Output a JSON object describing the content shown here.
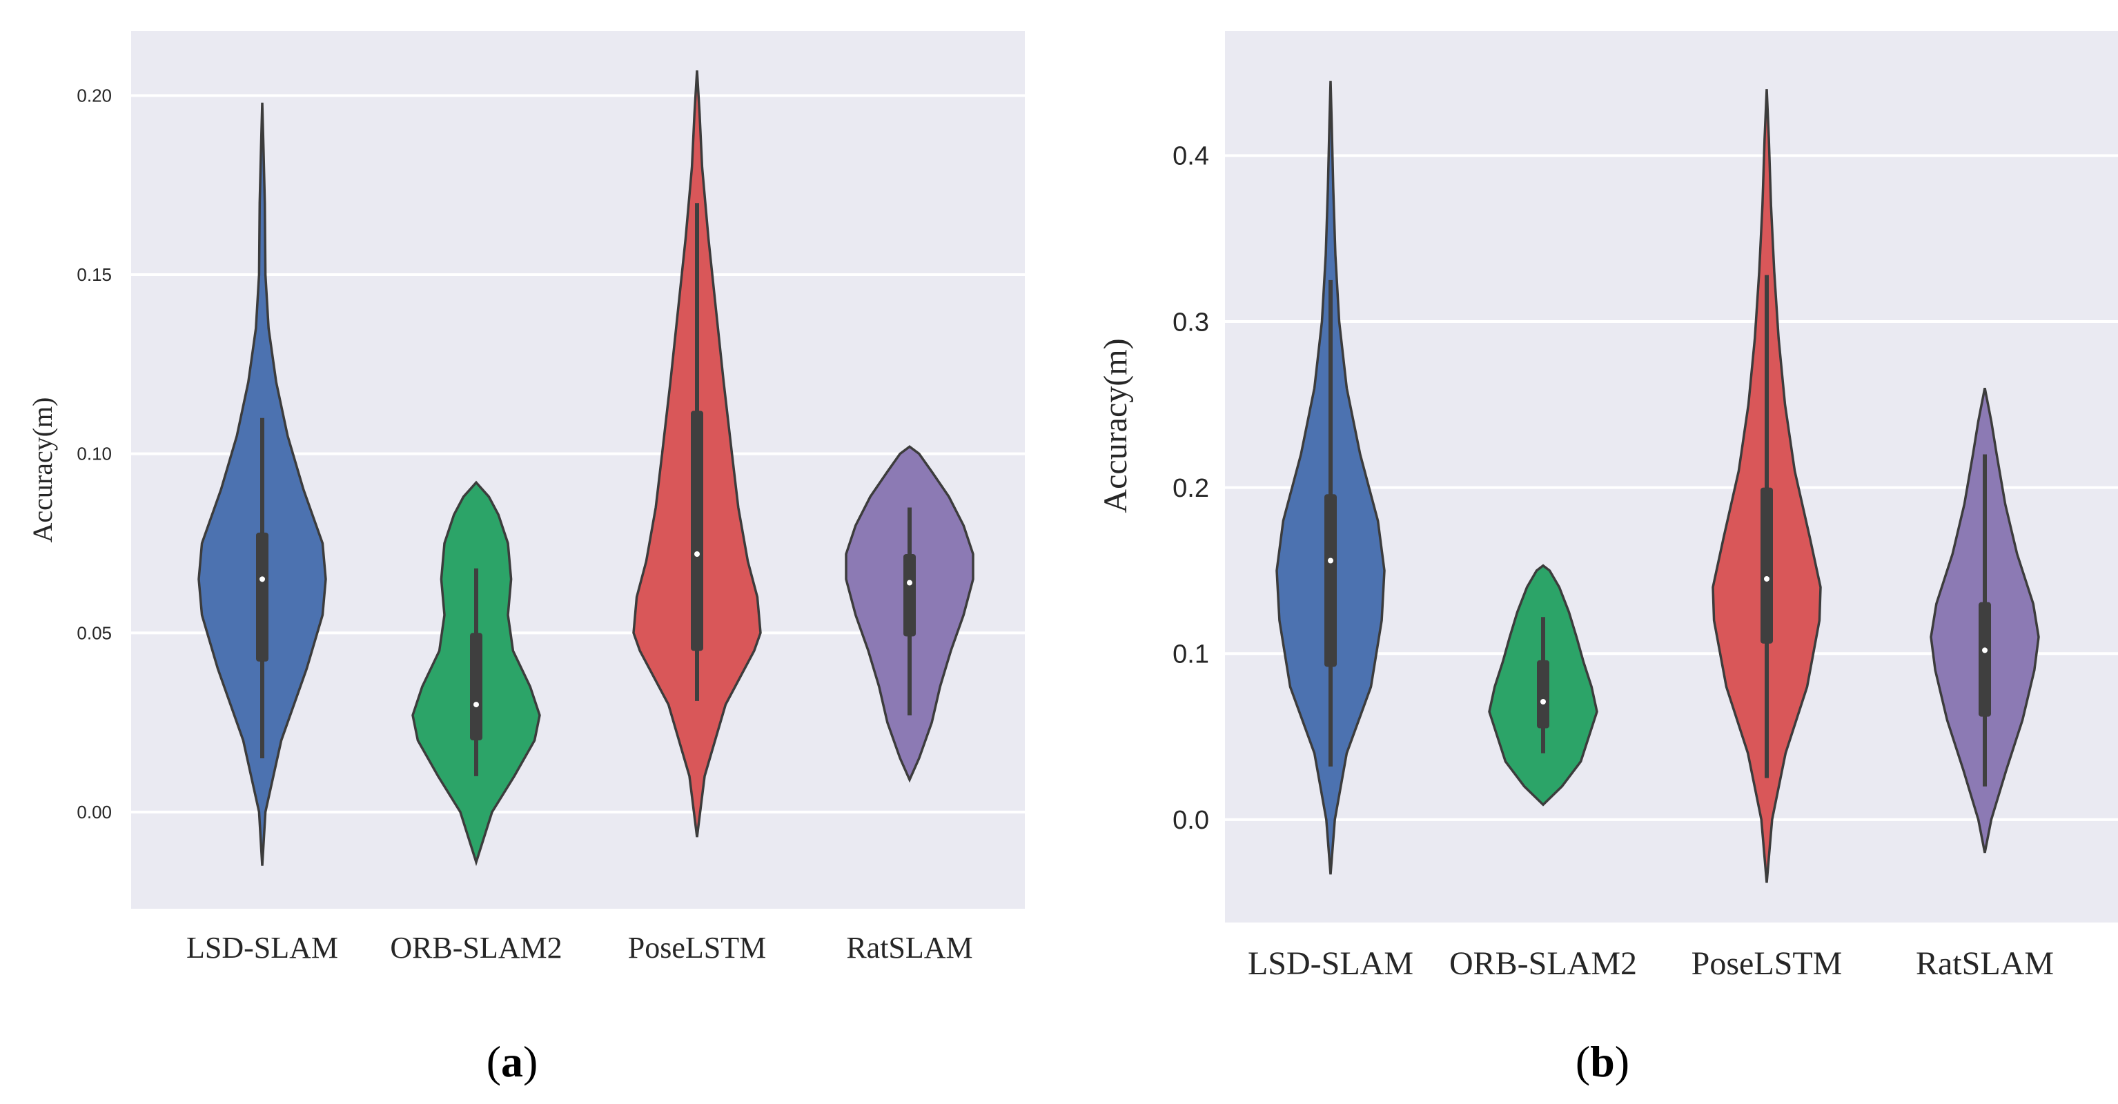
{
  "chart_data": [
    {
      "type": "violin",
      "panel_label": "a",
      "title": "",
      "xlabel": "",
      "ylabel": "Accuracy(m)",
      "ylim": [
        -0.027,
        0.218
      ],
      "yticks": [
        0.0,
        0.05,
        0.1,
        0.15,
        0.2
      ],
      "ytick_labels": [
        "0.00",
        "0.05",
        "0.10",
        "0.15",
        "0.20"
      ],
      "categories": [
        "LSD-SLAM",
        "ORB-SLAM2",
        "PoseLSTM",
        "RatSLAM"
      ],
      "colors": [
        "#4c72b0",
        "#2ca468",
        "#d95759",
        "#8c7ab4"
      ],
      "series": [
        {
          "name": "LSD-SLAM",
          "min": -0.015,
          "max": 0.198,
          "whisker_low": 0.015,
          "whisker_high": 0.11,
          "q1": 0.042,
          "median": 0.065,
          "q3": 0.078,
          "profile": [
            [
              -0.015,
              0.0
            ],
            [
              0.0,
              0.05
            ],
            [
              0.02,
              0.3
            ],
            [
              0.04,
              0.7
            ],
            [
              0.055,
              0.95
            ],
            [
              0.065,
              1.0
            ],
            [
              0.075,
              0.95
            ],
            [
              0.09,
              0.65
            ],
            [
              0.105,
              0.4
            ],
            [
              0.12,
              0.22
            ],
            [
              0.135,
              0.1
            ],
            [
              0.15,
              0.05
            ],
            [
              0.17,
              0.04
            ],
            [
              0.185,
              0.02
            ],
            [
              0.198,
              0.0
            ]
          ]
        },
        {
          "name": "ORB-SLAM2",
          "min": -0.014,
          "max": 0.092,
          "whisker_low": 0.01,
          "whisker_high": 0.068,
          "q1": 0.02,
          "median": 0.03,
          "q3": 0.05,
          "profile": [
            [
              -0.014,
              0.0
            ],
            [
              0.0,
              0.25
            ],
            [
              0.01,
              0.6
            ],
            [
              0.02,
              0.92
            ],
            [
              0.027,
              1.0
            ],
            [
              0.035,
              0.85
            ],
            [
              0.045,
              0.58
            ],
            [
              0.055,
              0.5
            ],
            [
              0.065,
              0.55
            ],
            [
              0.075,
              0.5
            ],
            [
              0.083,
              0.35
            ],
            [
              0.088,
              0.2
            ],
            [
              0.092,
              0.0
            ]
          ]
        },
        {
          "name": "PoseLSTM",
          "min": -0.007,
          "max": 0.207,
          "whisker_low": 0.031,
          "whisker_high": 0.17,
          "q1": 0.045,
          "median": 0.072,
          "q3": 0.112,
          "profile": [
            [
              -0.007,
              0.0
            ],
            [
              0.01,
              0.12
            ],
            [
              0.03,
              0.45
            ],
            [
              0.045,
              0.9
            ],
            [
              0.05,
              1.0
            ],
            [
              0.06,
              0.95
            ],
            [
              0.07,
              0.8
            ],
            [
              0.085,
              0.65
            ],
            [
              0.1,
              0.55
            ],
            [
              0.12,
              0.42
            ],
            [
              0.14,
              0.3
            ],
            [
              0.16,
              0.18
            ],
            [
              0.18,
              0.08
            ],
            [
              0.195,
              0.04
            ],
            [
              0.207,
              0.0
            ]
          ]
        },
        {
          "name": "RatSLAM",
          "min": 0.009,
          "max": 0.102,
          "whisker_low": 0.027,
          "whisker_high": 0.085,
          "q1": 0.049,
          "median": 0.064,
          "q3": 0.072,
          "profile": [
            [
              0.009,
              0.0
            ],
            [
              0.015,
              0.15
            ],
            [
              0.025,
              0.35
            ],
            [
              0.035,
              0.48
            ],
            [
              0.045,
              0.65
            ],
            [
              0.055,
              0.85
            ],
            [
              0.065,
              1.0
            ],
            [
              0.072,
              1.0
            ],
            [
              0.08,
              0.85
            ],
            [
              0.088,
              0.62
            ],
            [
              0.095,
              0.35
            ],
            [
              0.1,
              0.15
            ],
            [
              0.102,
              0.0
            ]
          ]
        }
      ]
    },
    {
      "type": "violin",
      "panel_label": "b",
      "title": "",
      "xlabel": "",
      "ylabel": "Accuracy(m)",
      "ylim": [
        -0.062,
        0.475
      ],
      "yticks": [
        0.0,
        0.1,
        0.2,
        0.3,
        0.4
      ],
      "ytick_labels": [
        "0.0",
        "0.1",
        "0.2",
        "0.3",
        "0.4"
      ],
      "categories": [
        "LSD-SLAM",
        "ORB-SLAM2",
        "PoseLSTM",
        "RatSLAM"
      ],
      "colors": [
        "#4c72b0",
        "#2ca468",
        "#d95759",
        "#8c7ab4"
      ],
      "series": [
        {
          "name": "LSD-SLAM",
          "min": -0.033,
          "max": 0.445,
          "whisker_low": 0.032,
          "whisker_high": 0.325,
          "q1": 0.092,
          "median": 0.156,
          "q3": 0.196,
          "profile": [
            [
              -0.033,
              0.0
            ],
            [
              0.0,
              0.08
            ],
            [
              0.04,
              0.3
            ],
            [
              0.08,
              0.75
            ],
            [
              0.12,
              0.95
            ],
            [
              0.15,
              1.0
            ],
            [
              0.18,
              0.88
            ],
            [
              0.22,
              0.55
            ],
            [
              0.26,
              0.3
            ],
            [
              0.3,
              0.16
            ],
            [
              0.34,
              0.09
            ],
            [
              0.38,
              0.05
            ],
            [
              0.42,
              0.02
            ],
            [
              0.445,
              0.0
            ]
          ]
        },
        {
          "name": "ORB-SLAM2",
          "min": 0.009,
          "max": 0.153,
          "whisker_low": 0.04,
          "whisker_high": 0.122,
          "q1": 0.055,
          "median": 0.071,
          "q3": 0.096,
          "profile": [
            [
              0.009,
              0.0
            ],
            [
              0.02,
              0.35
            ],
            [
              0.035,
              0.7
            ],
            [
              0.05,
              0.85
            ],
            [
              0.065,
              1.0
            ],
            [
              0.08,
              0.9
            ],
            [
              0.095,
              0.75
            ],
            [
              0.11,
              0.62
            ],
            [
              0.125,
              0.48
            ],
            [
              0.14,
              0.3
            ],
            [
              0.15,
              0.12
            ],
            [
              0.153,
              0.0
            ]
          ]
        },
        {
          "name": "PoseLSTM",
          "min": -0.038,
          "max": 0.44,
          "whisker_low": 0.025,
          "whisker_high": 0.328,
          "q1": 0.106,
          "median": 0.145,
          "q3": 0.2,
          "profile": [
            [
              -0.038,
              0.0
            ],
            [
              0.0,
              0.1
            ],
            [
              0.04,
              0.35
            ],
            [
              0.08,
              0.75
            ],
            [
              0.12,
              0.98
            ],
            [
              0.14,
              1.0
            ],
            [
              0.17,
              0.8
            ],
            [
              0.21,
              0.52
            ],
            [
              0.25,
              0.34
            ],
            [
              0.29,
              0.22
            ],
            [
              0.33,
              0.14
            ],
            [
              0.37,
              0.08
            ],
            [
              0.41,
              0.04
            ],
            [
              0.44,
              0.0
            ]
          ]
        },
        {
          "name": "RatSLAM",
          "min": -0.02,
          "max": 0.26,
          "whisker_low": 0.02,
          "whisker_high": 0.22,
          "q1": 0.062,
          "median": 0.102,
          "q3": 0.131,
          "profile": [
            [
              -0.02,
              0.0
            ],
            [
              0.0,
              0.12
            ],
            [
              0.03,
              0.4
            ],
            [
              0.06,
              0.7
            ],
            [
              0.09,
              0.92
            ],
            [
              0.11,
              1.0
            ],
            [
              0.13,
              0.9
            ],
            [
              0.16,
              0.6
            ],
            [
              0.19,
              0.38
            ],
            [
              0.22,
              0.22
            ],
            [
              0.24,
              0.12
            ],
            [
              0.26,
              0.0
            ]
          ]
        }
      ]
    }
  ]
}
